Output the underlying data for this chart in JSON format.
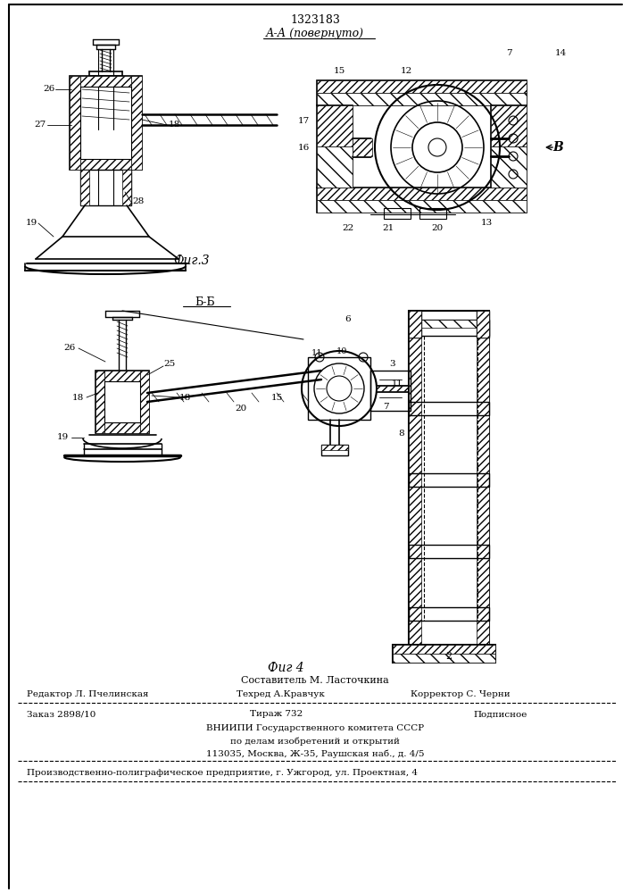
{
  "patent_number": "1323183",
  "fig3_label": "А-А (повернуто)",
  "fig3_section": "Фиг.3",
  "fig4_section": "Б-Б",
  "fig4_caption": "Фиг 4",
  "composer": "Составитель М. Ласточкина",
  "editor_label": "Редактор Л. Пчелинская",
  "techred_label": "Техред А.Кравчук",
  "corrector_label": "Корректор С. Черни",
  "order_label": "Заказ 2898/10",
  "tirazh_label": "Тираж 732",
  "podpisnoe_label": "Подписное",
  "vniipi_line1": "ВНИИПИ Государственного комитета СССР",
  "vniipi_line2": "по делам изобретений и открытий",
  "vniipi_line3": "113035, Москва, Ж-35, Раушская наб., д. 4/5",
  "factory_line": "Производственно-полиграфическое предприятие, г. Ужгород, ул. Проектная, 4",
  "bg_color": "#ffffff",
  "line_color": "#000000"
}
